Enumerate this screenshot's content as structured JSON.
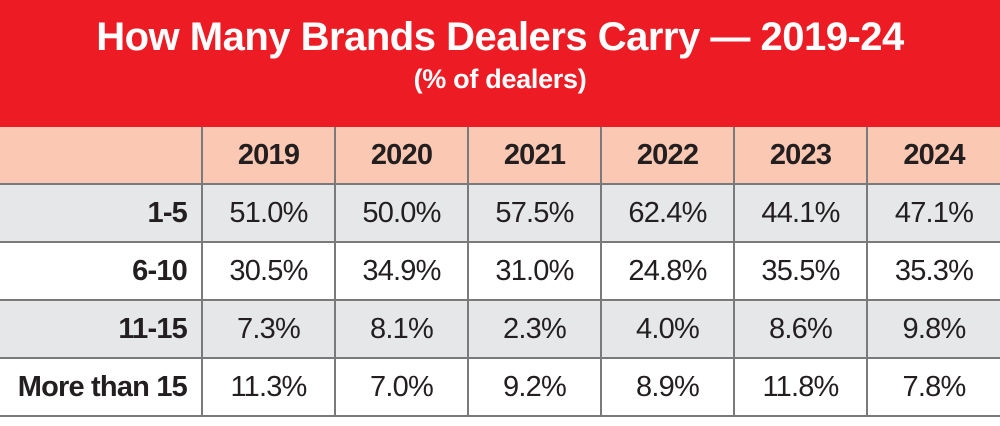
{
  "title": "How Many Brands Dealers Carry — 2019-24",
  "subtitle": "(% of dealers)",
  "colors": {
    "title_band": "#ed1c24",
    "header_row": "#fbc8b3",
    "alt_row": "#e6e7e8"
  },
  "chart_data": {
    "type": "table",
    "title": "How Many Brands Dealers Carry — 2019-24",
    "subtitle": "(% of dealers)",
    "columns": [
      "2019",
      "2020",
      "2021",
      "2022",
      "2023",
      "2024"
    ],
    "rows": [
      {
        "label": "1-5",
        "values": [
          "51.0%",
          "50.0%",
          "57.5%",
          "62.4%",
          "44.1%",
          "47.1%"
        ]
      },
      {
        "label": "6-10",
        "values": [
          "30.5%",
          "34.9%",
          "31.0%",
          "24.8%",
          "35.5%",
          "35.3%"
        ]
      },
      {
        "label": "11-15",
        "values": [
          "7.3%",
          "8.1%",
          "2.3%",
          "4.0%",
          "8.6%",
          "9.8%"
        ]
      },
      {
        "label": "More than 15",
        "values": [
          "11.3%",
          "7.0%",
          "9.2%",
          "8.9%",
          "11.8%",
          "7.8%"
        ]
      }
    ]
  }
}
